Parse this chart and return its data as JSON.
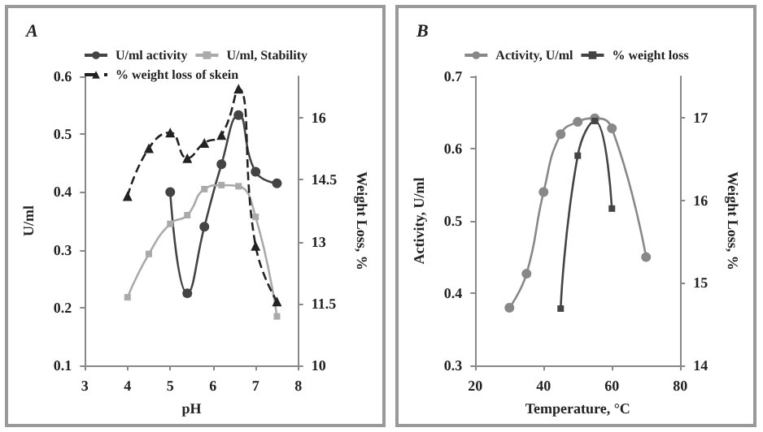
{
  "chart_data": [
    {
      "type": "line",
      "title": "A",
      "xlabel": "pH",
      "ylabel": "U/ml",
      "y2label": "Weight Loss, %",
      "xlim": [
        3,
        8
      ],
      "xticks": [
        3,
        4,
        5,
        6,
        7,
        8
      ],
      "ylim": [
        0.1,
        0.6
      ],
      "yticks": [
        0.1,
        0.2,
        0.3,
        0.4,
        0.5,
        0.6
      ],
      "y2lim": [
        10,
        17
      ],
      "y2ticks": [
        10,
        11.5,
        13,
        14.5,
        16
      ],
      "legend": "top",
      "grid": false,
      "series": [
        {
          "name": "U/ml activity",
          "color": "#444444",
          "marker": "circle",
          "line_style": "solid",
          "x": [
            5,
            5.4,
            5.8,
            6.2,
            6.6,
            7,
            7.5
          ],
          "values": [
            0.4,
            0.225,
            0.34,
            0.448,
            0.533,
            0.435,
            0.415
          ]
        },
        {
          "name": "U/ml, Stability",
          "color": "#aaaaaa",
          "marker": "square",
          "line_style": "solid",
          "x": [
            4,
            4.5,
            5,
            5.4,
            5.8,
            6.2,
            6.6,
            7,
            7.5
          ],
          "values": [
            0.218,
            0.293,
            0.345,
            0.36,
            0.405,
            0.412,
            0.41,
            0.357,
            0.185
          ]
        },
        {
          "name": "% weight loss of skein",
          "color": "#222222",
          "marker": "triangle",
          "line_style": "dashed",
          "axis": "y2",
          "x": [
            4,
            4.5,
            5,
            5.4,
            5.8,
            6.2,
            6.6,
            7,
            7.5
          ],
          "values": [
            14.1,
            15.26,
            15.64,
            15.02,
            15.39,
            15.58,
            16.7,
            12.9,
            11.55
          ]
        }
      ]
    },
    {
      "type": "line",
      "title": "B",
      "xlabel": "Temperature, °C",
      "ylabel": "Activity, U/ml",
      "y2label": "Weight Loss, %",
      "xlim": [
        20,
        80
      ],
      "xticks": [
        20,
        40,
        60,
        80
      ],
      "ylim": [
        0.3,
        0.7
      ],
      "yticks": [
        0.3,
        0.4,
        0.5,
        0.6,
        0.7
      ],
      "y2lim": [
        14,
        17.5
      ],
      "y2ticks": [
        14,
        15,
        16,
        17
      ],
      "legend": "top",
      "grid": false,
      "series": [
        {
          "name": "Activity, U/ml",
          "color": "#888888",
          "marker": "circle",
          "line_style": "solid",
          "x": [
            30,
            35,
            40,
            45,
            50,
            55,
            60,
            70
          ],
          "values": [
            0.38,
            0.427,
            0.54,
            0.62,
            0.637,
            0.642,
            0.628,
            0.45
          ]
        },
        {
          "name": "% weight loss",
          "color": "#444444",
          "marker": "square",
          "line_style": "solid",
          "axis": "y2",
          "x": [
            45,
            50,
            55,
            60
          ],
          "values": [
            14.69,
            16.54,
            16.96,
            15.9
          ]
        }
      ]
    }
  ]
}
